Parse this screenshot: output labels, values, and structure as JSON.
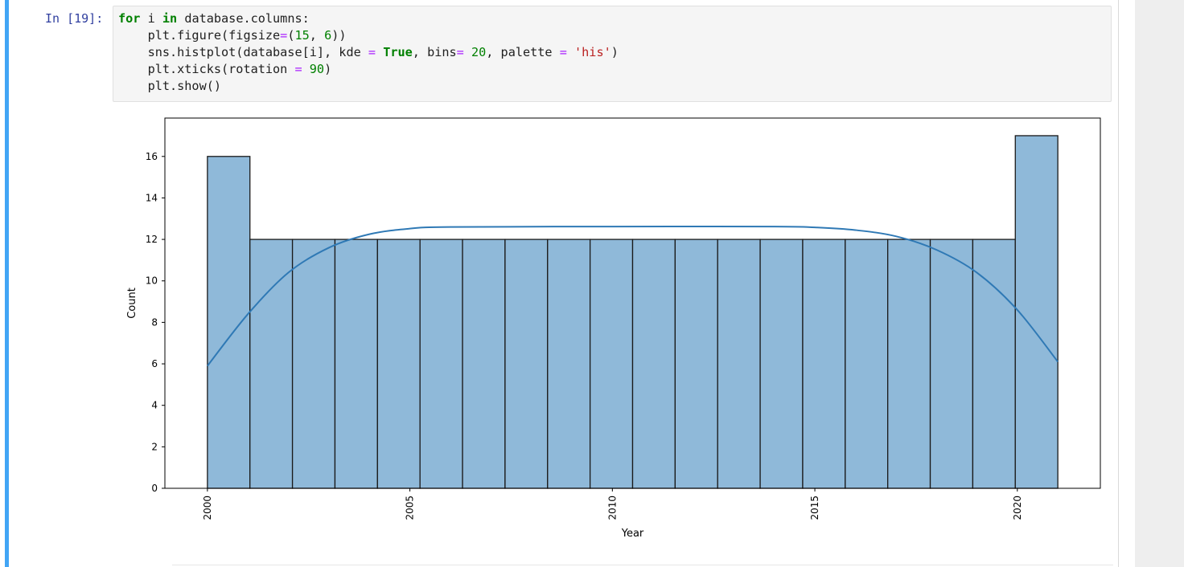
{
  "cell": {
    "prompt": "In [19]:",
    "code_lines": [
      [
        {
          "t": "for",
          "c": "kw"
        },
        {
          "t": " i "
        },
        {
          "t": "in",
          "c": "kw"
        },
        {
          "t": " database.columns:"
        }
      ],
      [
        {
          "t": "    plt.figure(figsize"
        },
        {
          "t": "=",
          "c": "op"
        },
        {
          "t": "("
        },
        {
          "t": "15",
          "c": "num"
        },
        {
          "t": ", "
        },
        {
          "t": "6",
          "c": "num"
        },
        {
          "t": "))"
        }
      ],
      [
        {
          "t": "    sns.histplot(database[i], kde "
        },
        {
          "t": "=",
          "c": "op"
        },
        {
          "t": " "
        },
        {
          "t": "True",
          "c": "kw"
        },
        {
          "t": ", bins"
        },
        {
          "t": "=",
          "c": "op"
        },
        {
          "t": " "
        },
        {
          "t": "20",
          "c": "num"
        },
        {
          "t": ", palette "
        },
        {
          "t": "=",
          "c": "op"
        },
        {
          "t": " "
        },
        {
          "t": "'his'",
          "c": "str"
        },
        {
          "t": ")"
        }
      ],
      [
        {
          "t": "    plt.xticks(rotation "
        },
        {
          "t": "=",
          "c": "op"
        },
        {
          "t": " "
        },
        {
          "t": "90",
          "c": "num"
        },
        {
          "t": ")"
        }
      ],
      [
        {
          "t": "    plt.show()"
        }
      ]
    ]
  },
  "chart_data": {
    "type": "bar",
    "title": "",
    "xlabel": "Year",
    "ylabel": "Count",
    "xlim": [
      1998.95,
      2022.05
    ],
    "ylim": [
      0,
      17.85
    ],
    "xticks": [
      2000,
      2005,
      2010,
      2015,
      2020
    ],
    "yticks": [
      0,
      2,
      4,
      6,
      8,
      10,
      12,
      14,
      16
    ],
    "bins": {
      "start": 2000,
      "width": 1.05,
      "counts": [
        16,
        12,
        12,
        12,
        12,
        12,
        12,
        12,
        12,
        12,
        12,
        12,
        12,
        12,
        12,
        12,
        12,
        12,
        12,
        17
      ]
    },
    "kde": {
      "x": [
        2000,
        2001,
        2002,
        2003,
        2004,
        2005,
        2006,
        2010,
        2014,
        2015,
        2016,
        2017,
        2018,
        2019,
        2020,
        2021
      ],
      "y": [
        5.9,
        8.4,
        10.4,
        11.6,
        12.25,
        12.52,
        12.6,
        12.62,
        12.62,
        12.58,
        12.45,
        12.15,
        11.5,
        10.4,
        8.6,
        6.1
      ]
    },
    "colors": {
      "bar_fill": "#8fb9d9",
      "bar_edge": "#1a1a1a",
      "kde_line": "#2f79b5"
    }
  }
}
